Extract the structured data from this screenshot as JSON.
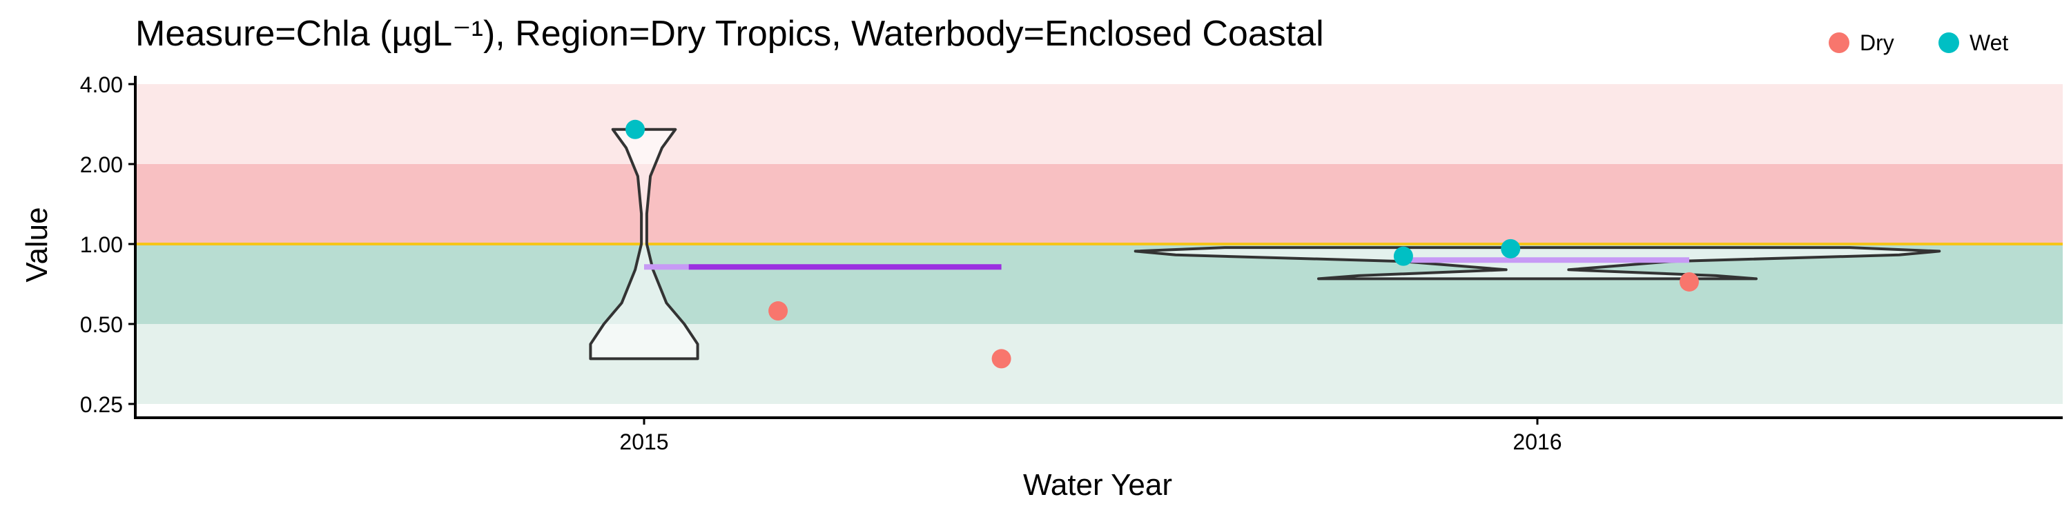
{
  "chart_data": {
    "type": "scatter",
    "title": "Measure=Chla (µgL⁻¹), Region=Dry Tropics, Waterbody=Enclosed Coastal",
    "xlabel": "Water Year",
    "ylabel": "Value",
    "y_scale": "log",
    "ylim": [
      0.25,
      4.0
    ],
    "ytick_labels": [
      "4.00",
      "2.00",
      "1.00",
      "0.50",
      "0.25"
    ],
    "ytick_values": [
      4.0,
      2.0,
      1.0,
      0.5,
      0.25
    ],
    "categories": [
      "2015",
      "2016"
    ],
    "grid": false,
    "legend": {
      "placement": "top-right",
      "entries": [
        {
          "name": "Dry",
          "color": "#f8766d"
        },
        {
          "name": "Wet",
          "color": "#00bfc4"
        }
      ]
    },
    "threshold": {
      "value": 1.0,
      "color": "#f5c518"
    },
    "bands": [
      {
        "from": 2.0,
        "to": 4.0,
        "color": "#fce8e8"
      },
      {
        "from": 1.0,
        "to": 2.0,
        "color": "#f8c0c2"
      },
      {
        "from": 0.5,
        "to": 1.0,
        "color": "#b8ddd2"
      },
      {
        "from": 0.25,
        "to": 0.5,
        "color": "#e4f1ec"
      }
    ],
    "series": [
      {
        "name": "Dry",
        "color": "#f8766d",
        "points": [
          {
            "year": "2015",
            "offset": 0.15,
            "y": 0.56
          },
          {
            "year": "2015",
            "offset": 0.4,
            "y": 0.37
          },
          {
            "year": "2016",
            "offset": 0.17,
            "y": 0.72
          }
        ]
      },
      {
        "name": "Wet",
        "color": "#00bfc4",
        "points": [
          {
            "year": "2015",
            "offset": -0.01,
            "y": 2.7
          },
          {
            "year": "2016",
            "offset": -0.15,
            "y": 0.9
          },
          {
            "year": "2016",
            "offset": -0.03,
            "y": 0.96
          }
        ]
      }
    ],
    "violins": [
      {
        "year": "2015",
        "min": 0.37,
        "max": 2.7,
        "profile": [
          [
            0.37,
            0.06
          ],
          [
            0.42,
            0.06
          ],
          [
            0.5,
            0.045
          ],
          [
            0.6,
            0.025
          ],
          [
            0.8,
            0.01
          ],
          [
            1.0,
            0.003
          ],
          [
            1.3,
            0.003
          ],
          [
            1.8,
            0.007
          ],
          [
            2.3,
            0.02
          ],
          [
            2.7,
            0.035
          ]
        ]
      },
      {
        "year": "2016",
        "min": 0.74,
        "max": 0.97,
        "profile": [
          [
            0.74,
            0.245
          ],
          [
            0.76,
            0.2
          ],
          [
            0.8,
            0.035
          ],
          [
            0.86,
            0.15
          ],
          [
            0.91,
            0.405
          ],
          [
            0.94,
            0.45
          ],
          [
            0.97,
            0.35
          ]
        ]
      }
    ],
    "mean_lines": [
      {
        "year": "2015",
        "y": 0.82,
        "from": 0.0,
        "to": 0.4,
        "segments": [
          {
            "from": 0.0,
            "to": 0.05,
            "color": "#c79af5"
          },
          {
            "from": 0.05,
            "to": 0.4,
            "color": "#9b30e0"
          }
        ]
      },
      {
        "year": "2016",
        "y": 0.87,
        "from": -0.15,
        "to": 0.17,
        "segments": [
          {
            "from": -0.15,
            "to": 0.17,
            "color": "#c79af5"
          }
        ]
      }
    ]
  }
}
